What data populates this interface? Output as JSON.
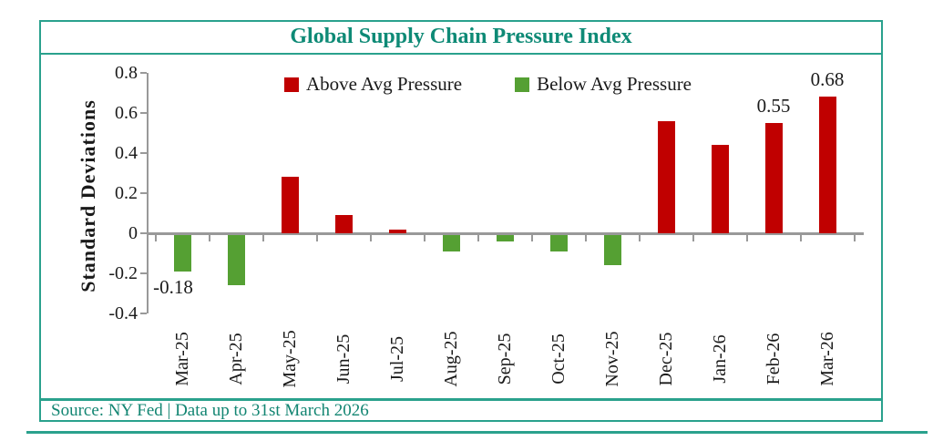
{
  "title": "Global Supply Chain Pressure Index",
  "source_note": "Source: NY Fed | Data up to 31st March 2026",
  "colors": {
    "above_avg_red": "#c00000",
    "below_avg_green": "#55a033",
    "frame_teal": "#2aa18d",
    "title_teal": "#0e8a76",
    "axis_gray": "#999999"
  },
  "chart_data": {
    "type": "bar",
    "title": "Global Supply Chain Pressure Index",
    "ylabel": "Standard Deviations",
    "xlabel": "",
    "categories": [
      "Mar-25",
      "Apr-25",
      "May-25",
      "Jun-25",
      "Jul-25",
      "Aug-25",
      "Sep-25",
      "Oct-25",
      "Nov-25",
      "Dec-25",
      "Jan-26",
      "Feb-26",
      "Mar-26"
    ],
    "values": [
      -0.18,
      -0.25,
      0.28,
      0.09,
      0.02,
      -0.08,
      -0.03,
      -0.08,
      -0.15,
      0.56,
      0.44,
      0.55,
      0.68
    ],
    "ylim": [
      -0.4,
      0.8
    ],
    "yticks": [
      0.8,
      0.6,
      0.4,
      0.2,
      0,
      -0.2,
      -0.4
    ],
    "grid": "off",
    "legend_position": "top-center-inside",
    "legend": [
      {
        "label": "Above Avg Pressure",
        "color": "#c00000"
      },
      {
        "label": "Below Avg Pressure",
        "color": "#55a033"
      }
    ],
    "value_labels": [
      {
        "index": 0,
        "text": "-0.18",
        "position": "below"
      },
      {
        "index": 11,
        "text": "0.55",
        "position": "above"
      },
      {
        "index": 12,
        "text": "0.68",
        "position": "above"
      }
    ]
  }
}
